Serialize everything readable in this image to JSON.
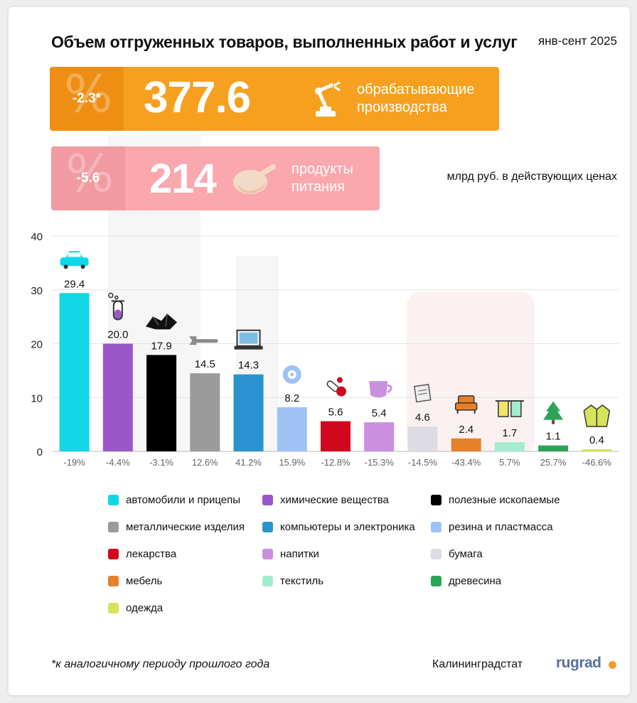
{
  "header": {
    "title": "Объем отгруженных товаров, выполненных работ и услуг",
    "period": "янв-сент 2025",
    "units": "млрд руб. в действующих ценах"
  },
  "banners": {
    "manufacturing": {
      "change": "-2.3*",
      "value": "377.6",
      "label_line1": "обрабатывающие",
      "label_line2": "производства",
      "icon": "robot-arm-icon",
      "color": "#f7a020"
    },
    "food": {
      "change": "-5.6",
      "value": "214",
      "label_line1": "продукты",
      "label_line2": "питания",
      "icon": "chicken-icon",
      "color": "#fba7ae"
    }
  },
  "chart_data": {
    "type": "bar",
    "ylim": [
      0,
      40
    ],
    "yticks": [
      "0",
      "10",
      "20",
      "30",
      "40"
    ],
    "grid": true,
    "legend_position": "bottom",
    "categories": [
      "автомобили и прицепы",
      "химические вещества",
      "полезные ископаемые",
      "металлические изделия",
      "компьютеры и электроника",
      "резина и пластмасса",
      "лекарства",
      "напитки",
      "бумага",
      "мебель",
      "текстиль",
      "древесина",
      "одежда"
    ],
    "values": [
      29.4,
      20.0,
      17.9,
      14.5,
      14.3,
      8.2,
      5.6,
      5.4,
      4.6,
      2.4,
      1.7,
      1.1,
      0.4
    ],
    "value_labels": [
      "29.4",
      "20.0",
      "17.9",
      "14.5",
      "14.3",
      "8.2",
      "5.6",
      "5.4",
      "4.6",
      "2.4",
      "1.7",
      "1.1",
      "0.4"
    ],
    "changes": [
      "-19%",
      "-4.4%",
      "-3.1%",
      "12.6%",
      "41.2%",
      "15.9%",
      "-12.8%",
      "-15.3%",
      "-14.5%",
      "-43.4%",
      "5.7%",
      "25.7%",
      "-46.6%"
    ],
    "colors": [
      "#11d6e6",
      "#9b57c7",
      "#000000",
      "#9b9b9b",
      "#2a93cf",
      "#9fc2f5",
      "#d1071d",
      "#cb8fe0",
      "#dcdce2",
      "#e6802a",
      "#a3ecd0",
      "#2aa457",
      "#d6e35c"
    ],
    "icons": [
      "car-icon",
      "flask-icon",
      "coal-icon",
      "wrench-icon",
      "laptop-icon",
      "tire-icon",
      "pills-icon",
      "cup-icon",
      "paper-icon",
      "armchair-icon",
      "towels-icon",
      "tree-icon",
      "jacket-icon"
    ]
  },
  "footer": {
    "note": "*к аналогичному периоду прошлого года",
    "source": "Калининградстат",
    "logo": "rugrad"
  }
}
